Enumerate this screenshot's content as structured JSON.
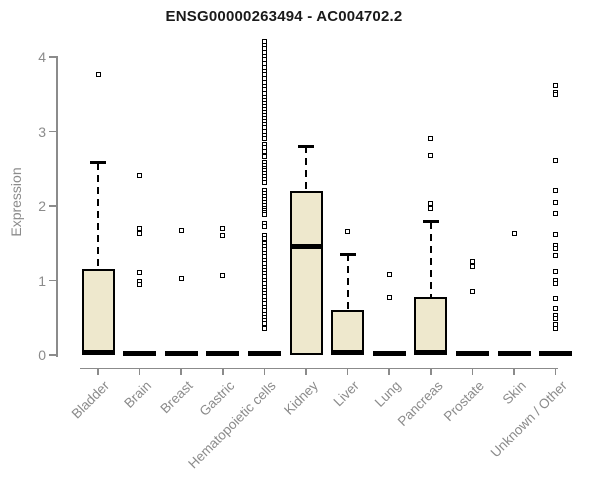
{
  "chart_data": {
    "type": "boxplot",
    "title": "ENSG00000263494 - AC004702.2",
    "ylabel": "Expression",
    "xlabel": "",
    "yticks": [
      0,
      1,
      2,
      3,
      4
    ],
    "ylim": [
      0,
      4.25
    ],
    "grid": false,
    "legend": null,
    "colors": {
      "box_fill": "#EEE8CD",
      "box_border": "#000000",
      "axis": "#8B8B8B",
      "title_text": "#1A1A1A"
    },
    "categories": [
      "Bladder",
      "Brain",
      "Breast",
      "Gastric",
      "Hematopoietic cells",
      "Kidney",
      "Liver",
      "Lung",
      "Pancreas",
      "Prostate",
      "Skin",
      "Unknown / Other"
    ],
    "boxes": [
      {
        "category": "Bladder",
        "q1": 0,
        "median": 0.03,
        "q3": 1.15,
        "whisker_high": 2.58,
        "outliers": [
          3.77
        ]
      },
      {
        "category": "Brain",
        "q1": 0,
        "median": 0.02,
        "q3": 0.05,
        "whisker_high": null,
        "outliers": [
          2.41,
          1.7,
          1.63,
          1.11,
          0.98,
          0.95
        ]
      },
      {
        "category": "Breast",
        "q1": 0,
        "median": 0.02,
        "q3": 0.05,
        "whisker_high": null,
        "outliers": [
          1.67,
          1.03
        ]
      },
      {
        "category": "Gastric",
        "q1": 0,
        "median": 0.02,
        "q3": 0.05,
        "whisker_high": null,
        "outliers": [
          1.7,
          1.6,
          1.07
        ]
      },
      {
        "category": "Hematopoietic cells",
        "q1": 0,
        "median": 0.02,
        "q3": 0.05,
        "whisker_high": null,
        "outliers": [
          4.21,
          4.16,
          4.11,
          4.06,
          4.01,
          3.96,
          3.91,
          3.86,
          3.81,
          3.76,
          3.71,
          3.66,
          3.61,
          3.56,
          3.51,
          3.46,
          3.42,
          3.38,
          3.34,
          3.3,
          3.26,
          3.22,
          3.18,
          3.14,
          3.1,
          3.05,
          3.0,
          2.95,
          2.9,
          2.82,
          2.78,
          2.73,
          2.66,
          2.59,
          2.55,
          2.51,
          2.47,
          2.43,
          2.39,
          2.35,
          2.31,
          2.21,
          2.17,
          2.13,
          2.09,
          2.05,
          2.01,
          1.97,
          1.94,
          1.91,
          1.88,
          1.77,
          1.72,
          1.61,
          1.56,
          1.5,
          1.45,
          1.41,
          1.36,
          1.32,
          1.27,
          1.23,
          1.18,
          1.14,
          1.09,
          1.05,
          1.0,
          0.96,
          0.91,
          0.87,
          0.82,
          0.78,
          0.73,
          0.69,
          0.64,
          0.6,
          0.55,
          0.51,
          0.46,
          0.42,
          0.36
        ]
      },
      {
        "category": "Kidney",
        "q1": 0,
        "median": 1.46,
        "q3": 2.2,
        "whisker_high": 2.8,
        "outliers": []
      },
      {
        "category": "Liver",
        "q1": 0,
        "median": 0.03,
        "q3": 0.61,
        "whisker_high": 1.35,
        "outliers": [
          1.66
        ]
      },
      {
        "category": "Lung",
        "q1": 0,
        "median": 0.02,
        "q3": 0.05,
        "whisker_high": null,
        "outliers": [
          1.08,
          0.77
        ]
      },
      {
        "category": "Pancreas",
        "q1": 0,
        "median": 0.03,
        "q3": 0.78,
        "whisker_high": 1.79,
        "outliers": [
          2.91,
          2.68,
          2.04,
          1.97
        ]
      },
      {
        "category": "Prostate",
        "q1": 0,
        "median": 0.02,
        "q3": 0.05,
        "whisker_high": null,
        "outliers": [
          1.25,
          1.19,
          0.85
        ]
      },
      {
        "category": "Skin",
        "q1": 0,
        "median": 0.02,
        "q3": 0.05,
        "whisker_high": null,
        "outliers": [
          1.63
        ]
      },
      {
        "category": "Unknown / Other",
        "q1": 0,
        "median": 0.02,
        "q3": 0.05,
        "whisker_high": null,
        "outliers": [
          3.62,
          3.53,
          3.5,
          2.61,
          2.21,
          2.05,
          1.9,
          1.62,
          1.47,
          1.43,
          1.33,
          1.12,
          1.0,
          0.96,
          0.76,
          0.63,
          0.53,
          0.49,
          0.41,
          0.36
        ]
      }
    ]
  }
}
